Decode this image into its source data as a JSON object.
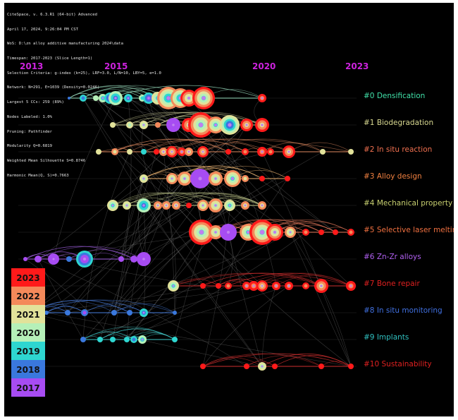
{
  "header_lines": [
    "CiteSpace, v. 6.3.R1 (64-bit) Advanced",
    "April 17, 2024, 9:26:04 PM CST",
    "WoS: D:\\zn alloy additive manufacturing 2024\\data",
    "Timespan: 2017-2023 (Slice Length=1)",
    "Selection Criteria: g-index (k=25), LRF=3.0, L/N=10, LBY=5, e=1.0",
    "Network: N=291, E=1039 (Density=0.0246)",
    "Largest 5 CCs: 259 (89%)",
    "Nodes Labeled: 1.0%",
    "Pruning: Pathfinder",
    "Modularity Q=0.6819",
    "Weighted Mean Silhouette S=0.8746",
    "Harmonic Mean(Q, S)=0.7663"
  ],
  "year_axis": [
    {
      "label": "2013",
      "color": "#cc22dd"
    },
    {
      "label": "2015",
      "color": "#cc22dd"
    },
    {
      "label": "2020",
      "color": "#cc22dd"
    },
    {
      "label": "2023",
      "color": "#cc22dd"
    }
  ],
  "clusters": [
    {
      "label": "#0 Densification",
      "color": "#40e0a8"
    },
    {
      "label": "#1 Biodegradation",
      "color": "#d8d890"
    },
    {
      "label": "#2 In situ reaction",
      "color": "#f07050"
    },
    {
      "label": "#3 Alloy design",
      "color": "#f08040"
    },
    {
      "label": "#4 Mechanical property",
      "color": "#c8d070"
    },
    {
      "label": "#5 Selective laser melting",
      "color": "#f07040"
    },
    {
      "label": "#6 Zn-Zr alloys",
      "color": "#b060f0"
    },
    {
      "label": "#7 Bone repair",
      "color": "#e02020"
    },
    {
      "label": "#8 In situ monitoring",
      "color": "#4070e0"
    },
    {
      "label": "#9 Implants",
      "color": "#30c0c0"
    },
    {
      "label": "#10 Sustainability",
      "color": "#e02020"
    }
  ],
  "legend": [
    {
      "year": "2023",
      "color": "#ff1a1a"
    },
    {
      "year": "2022",
      "color": "#f4895a"
    },
    {
      "year": "2021",
      "color": "#e2e29a"
    },
    {
      "year": "2020",
      "color": "#b5f0b8"
    },
    {
      "year": "2019",
      "color": "#2ed6d0"
    },
    {
      "year": "2018",
      "color": "#3a78dd"
    },
    {
      "year": "2017",
      "color": "#a74cf2"
    }
  ]
}
